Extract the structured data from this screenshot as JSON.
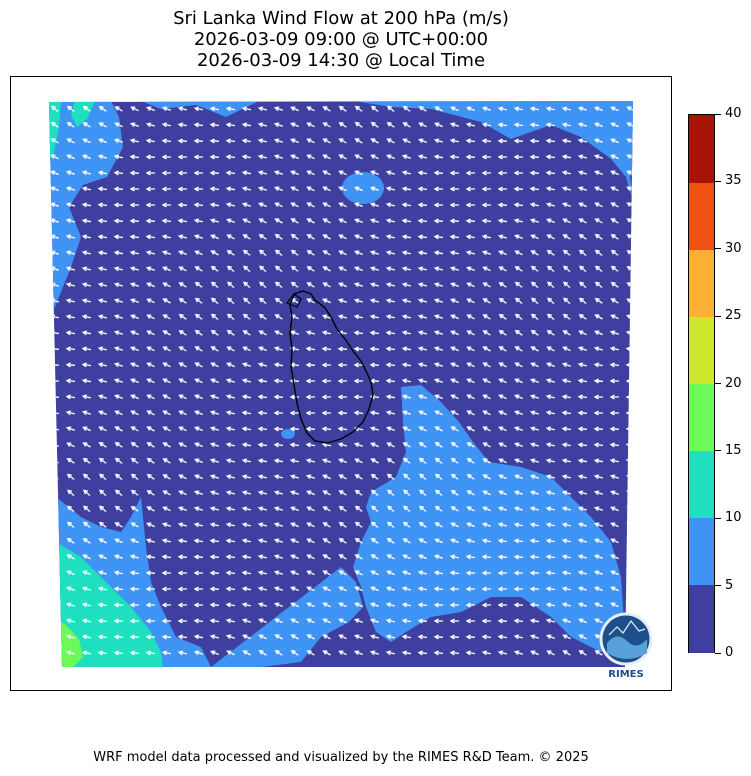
{
  "title": {
    "line1": "Sri Lanka Wind Flow at 200 hPa (m/s)",
    "line2": "2026-03-09 09:00 @ UTC+00:00",
    "line3": "2026-03-09 14:30 @ Local Time"
  },
  "colorbar": {
    "levels": [
      {
        "from": 0,
        "to": 5,
        "color": "#3f3f9f"
      },
      {
        "from": 5,
        "to": 10,
        "color": "#3f93f5"
      },
      {
        "from": 10,
        "to": 15,
        "color": "#1ee0bf"
      },
      {
        "from": 15,
        "to": 20,
        "color": "#6bfa57"
      },
      {
        "from": 20,
        "to": 25,
        "color": "#cde72f"
      },
      {
        "from": 25,
        "to": 30,
        "color": "#fcb035"
      },
      {
        "from": 30,
        "to": 35,
        "color": "#ef5112"
      },
      {
        "from": 35,
        "to": 40,
        "color": "#a61405"
      }
    ],
    "tick_labels": [
      "0",
      "5",
      "10",
      "15",
      "20",
      "25",
      "30",
      "35",
      "40"
    ]
  },
  "map": {
    "region": "Sri Lanka",
    "dominant_wind_direction": "easterly",
    "coastline_color": "#000000",
    "arrow_color": "#ffffff"
  },
  "logo": {
    "text": "RIMES"
  },
  "footer": "WRF model data processed and visualized by the RIMES R&D Team. © 2025"
}
